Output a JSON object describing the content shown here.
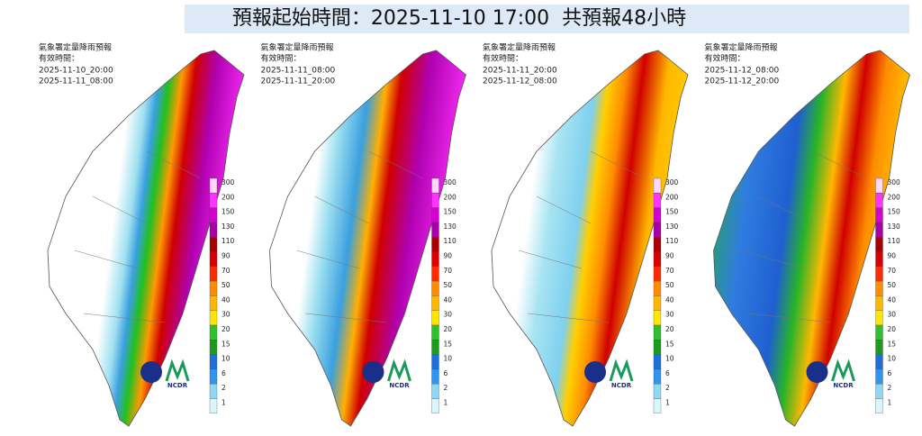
{
  "header": {
    "title": "預報起始時間：2025-11-10 17:00  共預報48小時"
  },
  "panels": [
    {
      "title": "氣象署定量降雨預報",
      "valid_label": "有效時間：",
      "start": "2025-11-10_20:00",
      "end": "2025-11-11_08:00"
    },
    {
      "title": "氣象署定量降雨預報",
      "valid_label": "有效時間：",
      "start": "2025-11-11_08:00",
      "end": "2025-11-11_20:00"
    },
    {
      "title": "氣象署定量降雨預報",
      "valid_label": "有效時間：",
      "start": "2025-11-11_20:00",
      "end": "2025-11-12_08:00"
    },
    {
      "title": "氣象署定量降雨預報",
      "valid_label": "有效時間：",
      "start": "2025-11-12_08:00",
      "end": "2025-11-12_20:00"
    }
  ],
  "legend": {
    "levels": [
      300,
      200,
      150,
      130,
      110,
      90,
      70,
      50,
      40,
      30,
      20,
      15,
      10,
      6,
      2,
      1
    ],
    "colors": [
      "#fdd7fd",
      "#ff33ff",
      "#d400d4",
      "#a800a8",
      "#a80000",
      "#d80000",
      "#ff2a00",
      "#ff8c00",
      "#ffb800",
      "#ffe600",
      "#2fbf2f",
      "#1e9a1e",
      "#1f6fd8",
      "#2f95ef",
      "#8fd8f5",
      "#d8f6fb"
    ]
  },
  "logo": {
    "ncdr": "NCDR"
  }
}
